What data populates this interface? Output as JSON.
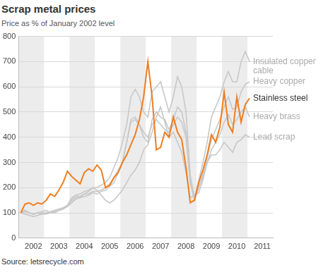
{
  "chart_data": {
    "type": "line",
    "title": "Scrap metal prices",
    "subtitle": "Price as % of January 2002 level",
    "source": "Source: letsrecycle.com",
    "categories": [
      null,
      null,
      null,
      "2002",
      null,
      null,
      null,
      null,
      null,
      "2003",
      null,
      null,
      null,
      null,
      null,
      "2004",
      null,
      null,
      null,
      null,
      null,
      "2005",
      null,
      null,
      null,
      null,
      null,
      "2006",
      null,
      null,
      null,
      null,
      null,
      "2007",
      null,
      null,
      null,
      null,
      null,
      "2008",
      null,
      null,
      null,
      null,
      null,
      "2009",
      null,
      null,
      null,
      null,
      null,
      "2010",
      null,
      null,
      null,
      null,
      null,
      "2011",
      null,
      null
    ],
    "series": [
      {
        "name": "Insulated copper cable",
        "color": "#c8c8c8",
        "values": [
          100,
          110,
          100,
          95,
          100,
          105,
          110,
          100,
          110,
          115,
          120,
          130,
          150,
          170,
          175,
          185,
          190,
          200,
          200,
          210,
          220,
          240,
          280,
          320,
          380,
          450,
          560,
          590,
          560,
          500,
          480,
          580,
          600,
          620,
          560,
          500,
          560,
          640,
          600,
          500,
          250,
          160,
          230,
          300,
          380,
          480,
          520,
          560,
          620,
          660,
          620,
          620,
          700,
          740,
          700,
          null,
          null,
          null,
          null,
          null
        ]
      },
      {
        "name": "Heavy copper",
        "color": "#c8c8c8",
        "values": [
          100,
          105,
          100,
          95,
          100,
          95,
          100,
          100,
          105,
          110,
          115,
          125,
          140,
          155,
          160,
          165,
          170,
          180,
          175,
          185,
          190,
          205,
          220,
          260,
          300,
          380,
          470,
          480,
          450,
          400,
          380,
          470,
          500,
          480,
          470,
          430,
          470,
          520,
          500,
          420,
          220,
          150,
          200,
          250,
          320,
          390,
          430,
          470,
          520,
          560,
          510,
          520,
          580,
          610,
          620,
          null,
          null,
          null,
          null,
          null
        ]
      },
      {
        "name": "Stainless steel",
        "color": "#f07d1e",
        "values": [
          100,
          135,
          140,
          130,
          140,
          135,
          150,
          175,
          165,
          190,
          220,
          265,
          245,
          230,
          215,
          260,
          275,
          265,
          290,
          270,
          200,
          210,
          240,
          260,
          300,
          330,
          370,
          410,
          470,
          560,
          700,
          560,
          350,
          360,
          420,
          400,
          480,
          420,
          390,
          280,
          140,
          150,
          220,
          270,
          330,
          410,
          380,
          440,
          580,
          450,
          420,
          560,
          460,
          530,
          555,
          null,
          null,
          null,
          null,
          null
        ]
      },
      {
        "name": "Heavy brass",
        "color": "#c8c8c8",
        "values": [
          100,
          110,
          100,
          95,
          100,
          100,
          100,
          105,
          110,
          115,
          120,
          125,
          140,
          160,
          165,
          175,
          175,
          185,
          185,
          190,
          200,
          215,
          240,
          270,
          300,
          380,
          460,
          470,
          450,
          420,
          400,
          450,
          470,
          450,
          430,
          420,
          450,
          480,
          460,
          400,
          220,
          160,
          200,
          240,
          300,
          350,
          380,
          410,
          460,
          490,
          450,
          470,
          500,
          520,
          480,
          null,
          null,
          null,
          null,
          null
        ]
      },
      {
        "name": "Lead scrap",
        "color": "#c8c8c8",
        "values": [
          100,
          95,
          90,
          85,
          90,
          95,
          95,
          100,
          100,
          110,
          115,
          130,
          160,
          170,
          160,
          175,
          185,
          200,
          190,
          170,
          150,
          140,
          150,
          170,
          190,
          220,
          250,
          270,
          300,
          350,
          370,
          420,
          480,
          520,
          460,
          400,
          420,
          380,
          340,
          260,
          160,
          170,
          180,
          230,
          300,
          330,
          330,
          350,
          380,
          360,
          340,
          380,
          390,
          410,
          400,
          null,
          null,
          null,
          null,
          null
        ]
      }
    ],
    "ylim": [
      0,
      800
    ],
    "yticks": [
      0,
      100,
      200,
      300,
      400,
      500,
      600,
      700,
      800
    ],
    "grid": true
  }
}
